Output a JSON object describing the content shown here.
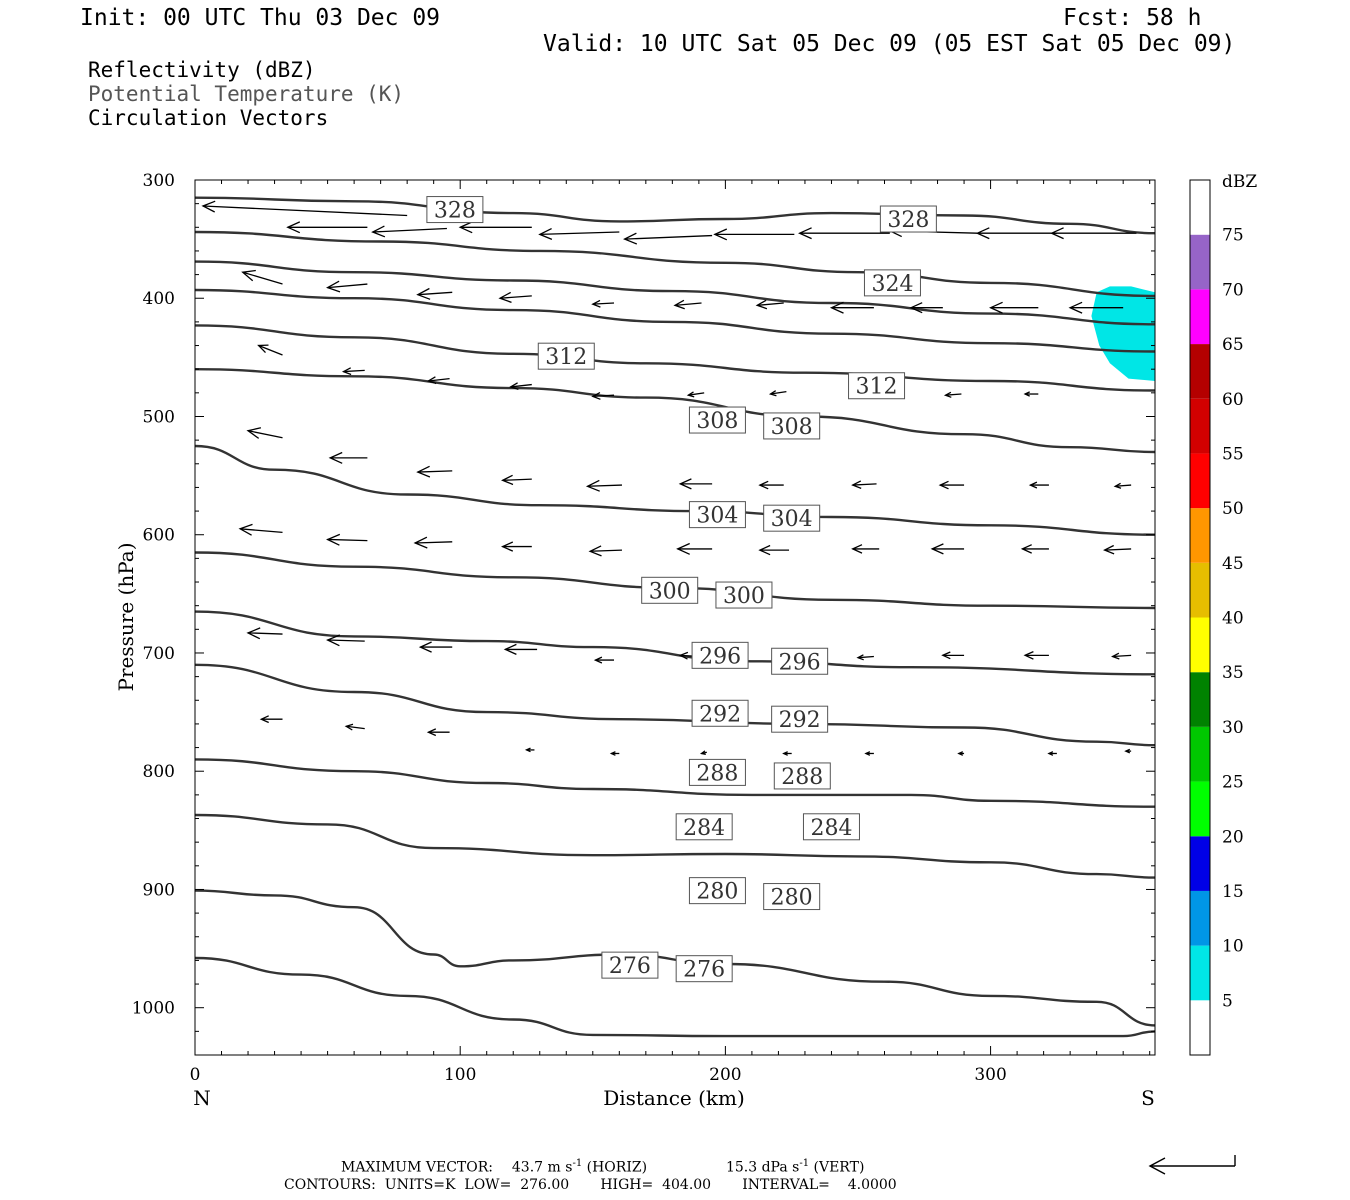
{
  "header": {
    "init": "Init: 00 UTC Thu 03 Dec 09",
    "fcst": "Fcst:   58 h",
    "valid": "Valid: 10 UTC Sat 05 Dec 09 (05 EST Sat 05 Dec 09)"
  },
  "legend_text": {
    "line1": "Reflectivity (dBZ)",
    "line2": "Potential Temperature (K)",
    "line3": "Circulation Vectors"
  },
  "footer": {
    "max_vector_label": "MAXIMUM VECTOR:",
    "horiz_value": "43.7 m s",
    "horiz_exp": "-1",
    "horiz_unit": " (HORIZ)",
    "vert_value": "15.3 dPa s",
    "vert_exp": "-1",
    "vert_unit": " (VERT)",
    "contours": "CONTOURS:  UNITS=K  LOW=  276.00       HIGH=  404.00       INTERVAL=    4.0000"
  },
  "colors": {
    "contour": "#333333",
    "vector": "#000000",
    "cyan_area": "#00e6e6"
  },
  "chart_data": {
    "type": "cross-section",
    "xlabel": "Distance (km)",
    "ylabel": "Pressure (hPa)",
    "x_ticks": [
      0,
      100,
      200,
      300
    ],
    "y_ticks": [
      300,
      400,
      500,
      600,
      700,
      800,
      900,
      1000
    ],
    "xlim": [
      0,
      362
    ],
    "ylim": [
      300,
      1040
    ],
    "x_end_labels": {
      "left": "N",
      "right": "S"
    },
    "colorbar": {
      "unit": "dBZ",
      "labels": [
        "5",
        "10",
        "15",
        "20",
        "25",
        "30",
        "35",
        "40",
        "45",
        "50",
        "55",
        "60",
        "65",
        "70",
        "75"
      ],
      "colors": [
        "#ffffff",
        "#00e6e6",
        "#0096e6",
        "#0000e6",
        "#00ff00",
        "#00c800",
        "#008200",
        "#ffff00",
        "#e6be00",
        "#ff9600",
        "#ff0000",
        "#d20000",
        "#b40000",
        "#ff00ff",
        "#9664c8",
        "#ffffff"
      ]
    },
    "contour_labels": [
      {
        "v": "328",
        "x": 98,
        "p": 325
      },
      {
        "v": "328",
        "x": 269,
        "p": 333
      },
      {
        "v": "324",
        "x": 263,
        "p": 387
      },
      {
        "v": "312",
        "x": 140,
        "p": 449
      },
      {
        "v": "312",
        "x": 257,
        "p": 474
      },
      {
        "v": "308",
        "x": 197,
        "p": 503
      },
      {
        "v": "308",
        "x": 225,
        "p": 508
      },
      {
        "v": "304",
        "x": 197,
        "p": 583
      },
      {
        "v": "304",
        "x": 225,
        "p": 586
      },
      {
        "v": "300",
        "x": 179,
        "p": 647
      },
      {
        "v": "300",
        "x": 207,
        "p": 651
      },
      {
        "v": "296",
        "x": 198,
        "p": 702
      },
      {
        "v": "296",
        "x": 228,
        "p": 707
      },
      {
        "v": "292",
        "x": 198,
        "p": 751
      },
      {
        "v": "292",
        "x": 228,
        "p": 756
      },
      {
        "v": "288",
        "x": 197,
        "p": 801
      },
      {
        "v": "288",
        "x": 229,
        "p": 804
      },
      {
        "v": "284",
        "x": 192,
        "p": 847
      },
      {
        "v": "284",
        "x": 240,
        "p": 847
      },
      {
        "v": "280",
        "x": 197,
        "p": 901
      },
      {
        "v": "280",
        "x": 225,
        "p": 906
      },
      {
        "v": "276",
        "x": 164,
        "p": 964
      },
      {
        "v": "276",
        "x": 192,
        "p": 967
      }
    ],
    "isentropes": [
      {
        "theta": 328,
        "pts": [
          [
            0,
            315
          ],
          [
            60,
            318
          ],
          [
            120,
            328
          ],
          [
            160,
            335
          ],
          [
            200,
            333
          ],
          [
            240,
            328
          ],
          [
            290,
            330
          ],
          [
            330,
            337
          ],
          [
            362,
            345
          ]
        ]
      },
      {
        "theta": 324,
        "pts": [
          [
            0,
            344
          ],
          [
            70,
            352
          ],
          [
            130,
            360
          ],
          [
            200,
            370
          ],
          [
            250,
            378
          ],
          [
            300,
            387
          ],
          [
            362,
            398
          ]
        ]
      },
      {
        "theta": 320,
        "pts": [
          [
            0,
            369
          ],
          [
            60,
            378
          ],
          [
            120,
            385
          ],
          [
            180,
            394
          ],
          [
            240,
            404
          ],
          [
            300,
            413
          ],
          [
            362,
            422
          ]
        ]
      },
      {
        "theta": 316,
        "pts": [
          [
            0,
            393
          ],
          [
            60,
            400
          ],
          [
            120,
            410
          ],
          [
            180,
            420
          ],
          [
            240,
            430
          ],
          [
            300,
            438
          ],
          [
            362,
            445
          ]
        ]
      },
      {
        "theta": 312,
        "pts": [
          [
            0,
            423
          ],
          [
            60,
            433
          ],
          [
            120,
            447
          ],
          [
            170,
            455
          ],
          [
            230,
            463
          ],
          [
            300,
            470
          ],
          [
            362,
            478
          ]
        ]
      },
      {
        "theta": 308,
        "pts": [
          [
            0,
            460
          ],
          [
            60,
            466
          ],
          [
            120,
            476
          ],
          [
            170,
            484
          ],
          [
            230,
            500
          ],
          [
            290,
            515
          ],
          [
            330,
            526
          ],
          [
            362,
            530
          ]
        ]
      },
      {
        "theta": 304,
        "pts": [
          [
            0,
            525
          ],
          [
            30,
            545
          ],
          [
            80,
            566
          ],
          [
            130,
            575
          ],
          [
            190,
            580
          ],
          [
            240,
            585
          ],
          [
            300,
            592
          ],
          [
            362,
            600
          ]
        ]
      },
      {
        "theta": 300,
        "pts": [
          [
            0,
            615
          ],
          [
            60,
            627
          ],
          [
            120,
            636
          ],
          [
            180,
            645
          ],
          [
            240,
            655
          ],
          [
            300,
            660
          ],
          [
            362,
            662
          ]
        ]
      },
      {
        "theta": 296,
        "pts": [
          [
            0,
            665
          ],
          [
            60,
            686
          ],
          [
            110,
            690
          ],
          [
            150,
            695
          ],
          [
            210,
            707
          ],
          [
            270,
            712
          ],
          [
            362,
            718
          ]
        ]
      },
      {
        "theta": 292,
        "pts": [
          [
            0,
            710
          ],
          [
            60,
            733
          ],
          [
            110,
            750
          ],
          [
            160,
            756
          ],
          [
            230,
            760
          ],
          [
            290,
            763
          ],
          [
            340,
            775
          ],
          [
            362,
            778
          ]
        ]
      },
      {
        "theta": 288,
        "pts": [
          [
            0,
            790
          ],
          [
            60,
            800
          ],
          [
            110,
            810
          ],
          [
            150,
            815
          ],
          [
            210,
            820
          ],
          [
            270,
            820
          ],
          [
            300,
            825
          ],
          [
            362,
            830
          ]
        ]
      },
      {
        "theta": 284,
        "pts": [
          [
            0,
            837
          ],
          [
            50,
            845
          ],
          [
            90,
            865
          ],
          [
            150,
            871
          ],
          [
            200,
            870
          ],
          [
            250,
            872
          ],
          [
            300,
            877
          ],
          [
            340,
            887
          ],
          [
            362,
            890
          ]
        ]
      },
      {
        "theta": 280,
        "pts": [
          [
            0,
            901
          ],
          [
            30,
            905
          ],
          [
            60,
            915
          ],
          [
            90,
            955
          ],
          [
            100,
            965
          ],
          [
            120,
            960
          ],
          [
            160,
            955
          ],
          [
            200,
            963
          ],
          [
            260,
            978
          ],
          [
            300,
            990
          ],
          [
            340,
            995
          ],
          [
            362,
            1015
          ]
        ]
      },
      {
        "theta": 276,
        "pts": [
          [
            0,
            958
          ],
          [
            40,
            972
          ],
          [
            80,
            990
          ],
          [
            120,
            1010
          ],
          [
            150,
            1023
          ],
          [
            200,
            1024
          ],
          [
            250,
            1024
          ],
          [
            300,
            1024
          ],
          [
            350,
            1024
          ],
          [
            362,
            1020
          ]
        ]
      }
    ],
    "vectors": [
      [
        3,
        322,
        80,
        330
      ],
      [
        35,
        340,
        65,
        340
      ],
      [
        67,
        344,
        95,
        341
      ],
      [
        100,
        340,
        127,
        340
      ],
      [
        130,
        346,
        160,
        344
      ],
      [
        162,
        350,
        195,
        347
      ],
      [
        196,
        346,
        226,
        346
      ],
      [
        228,
        345,
        262,
        345
      ],
      [
        262,
        343,
        295,
        345
      ],
      [
        295,
        345,
        325,
        345
      ],
      [
        323,
        345,
        355,
        345
      ],
      [
        18,
        378,
        33,
        388
      ],
      [
        50,
        391,
        65,
        388
      ],
      [
        84,
        397,
        97,
        395
      ],
      [
        115,
        400,
        127,
        398
      ],
      [
        150,
        405,
        158,
        404
      ],
      [
        181,
        406,
        191,
        404
      ],
      [
        212,
        406,
        222,
        404
      ],
      [
        240,
        408,
        256,
        408
      ],
      [
        270,
        408,
        282,
        408
      ],
      [
        300,
        408,
        318,
        408
      ],
      [
        330,
        408,
        350,
        408
      ],
      [
        24,
        440,
        33,
        448
      ],
      [
        56,
        462,
        64,
        461
      ],
      [
        88,
        470,
        96,
        468
      ],
      [
        119,
        475,
        127,
        473
      ],
      [
        150,
        483,
        158,
        482
      ],
      [
        186,
        482,
        192,
        480
      ],
      [
        217,
        481,
        223,
        479
      ],
      [
        283,
        482,
        289,
        481
      ],
      [
        313,
        481,
        318,
        481
      ],
      [
        20,
        512,
        33,
        518
      ],
      [
        51,
        535,
        65,
        535
      ],
      [
        84,
        547,
        97,
        546
      ],
      [
        116,
        554,
        127,
        553
      ],
      [
        148,
        559,
        161,
        558
      ],
      [
        183,
        557,
        195,
        557
      ],
      [
        213,
        558,
        222,
        558
      ],
      [
        248,
        558,
        257,
        557
      ],
      [
        281,
        558,
        290,
        558
      ],
      [
        315,
        558,
        322,
        558
      ],
      [
        347,
        559,
        353,
        558
      ],
      [
        17,
        595,
        33,
        598
      ],
      [
        50,
        604,
        65,
        605
      ],
      [
        83,
        607,
        97,
        606
      ],
      [
        116,
        610,
        127,
        610
      ],
      [
        149,
        614,
        161,
        613
      ],
      [
        182,
        612,
        195,
        612
      ],
      [
        213,
        613,
        224,
        613
      ],
      [
        248,
        612,
        258,
        612
      ],
      [
        278,
        612,
        290,
        612
      ],
      [
        312,
        612,
        322,
        612
      ],
      [
        343,
        613,
        353,
        612
      ],
      [
        20,
        683,
        33,
        684
      ],
      [
        50,
        689,
        64,
        690
      ],
      [
        85,
        695,
        97,
        695
      ],
      [
        117,
        697,
        129,
        697
      ],
      [
        151,
        706,
        158,
        706
      ],
      [
        183,
        702,
        191,
        703
      ],
      [
        218,
        703,
        226,
        704
      ],
      [
        250,
        704,
        256,
        703
      ],
      [
        282,
        702,
        290,
        702
      ],
      [
        313,
        702,
        322,
        702
      ],
      [
        346,
        703,
        353,
        702
      ],
      [
        25,
        756,
        33,
        756
      ],
      [
        57,
        762,
        64,
        764
      ],
      [
        88,
        767,
        96,
        767
      ],
      [
        125,
        782,
        128,
        782
      ],
      [
        157,
        785,
        160,
        785
      ],
      [
        191,
        785,
        193,
        784
      ],
      [
        222,
        785,
        225,
        785
      ],
      [
        253,
        785,
        256,
        785
      ],
      [
        288,
        785,
        290,
        785
      ],
      [
        322,
        785,
        325,
        785
      ],
      [
        351,
        783,
        353,
        783
      ]
    ],
    "reflectivity_area": {
      "dbz_class": "5-10",
      "polygon": [
        [
          340,
          395
        ],
        [
          345,
          390
        ],
        [
          353,
          390
        ],
        [
          362,
          395
        ],
        [
          362,
          470
        ],
        [
          352,
          468
        ],
        [
          345,
          455
        ],
        [
          341,
          440
        ],
        [
          338,
          415
        ]
      ]
    }
  }
}
